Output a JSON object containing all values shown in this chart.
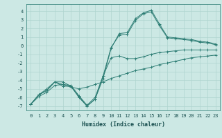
{
  "xlabel": "Humidex (Indice chaleur)",
  "xlim": [
    -0.5,
    23.5
  ],
  "ylim": [
    -7.5,
    4.8
  ],
  "xticks": [
    0,
    1,
    2,
    3,
    4,
    5,
    6,
    7,
    8,
    9,
    10,
    11,
    12,
    13,
    14,
    15,
    16,
    17,
    18,
    19,
    20,
    21,
    22,
    23
  ],
  "yticks": [
    -7,
    -6,
    -5,
    -4,
    -3,
    -2,
    -1,
    0,
    1,
    2,
    3,
    4
  ],
  "line_color": "#2d7d74",
  "bg_color": "#cce8e4",
  "grid_color": "#afd4cf",
  "s1": [
    -6.8,
    -5.7,
    -5.2,
    -4.2,
    -4.2,
    -4.7,
    -5.9,
    -7.0,
    -6.2,
    -3.5,
    -1.4,
    -1.2,
    -1.5,
    -1.5,
    -1.3,
    -1.0,
    -0.8,
    -0.7,
    -0.6,
    -0.5,
    -0.5,
    -0.5,
    -0.5,
    -0.5
  ],
  "s2": [
    -6.8,
    -5.7,
    -5.2,
    -4.2,
    -4.7,
    -4.7,
    -6.0,
    -7.0,
    -6.2,
    -3.8,
    -0.3,
    1.4,
    1.5,
    3.1,
    3.8,
    4.1,
    2.5,
    1.0,
    0.9,
    0.8,
    0.7,
    0.5,
    0.4,
    0.2
  ],
  "s3": [
    -6.8,
    -5.7,
    -5.0,
    -4.2,
    -4.5,
    -4.6,
    -5.8,
    -6.9,
    -6.0,
    -3.5,
    -0.2,
    1.2,
    1.3,
    2.9,
    3.7,
    3.9,
    2.3,
    0.9,
    0.8,
    0.7,
    0.6,
    0.4,
    0.3,
    0.1
  ],
  "s4": [
    -6.8,
    -5.9,
    -5.4,
    -4.6,
    -4.5,
    -4.8,
    -5.0,
    -4.8,
    -4.5,
    -4.2,
    -3.8,
    -3.5,
    -3.2,
    -2.9,
    -2.7,
    -2.5,
    -2.2,
    -2.0,
    -1.8,
    -1.6,
    -1.4,
    -1.3,
    -1.2,
    -1.1
  ]
}
